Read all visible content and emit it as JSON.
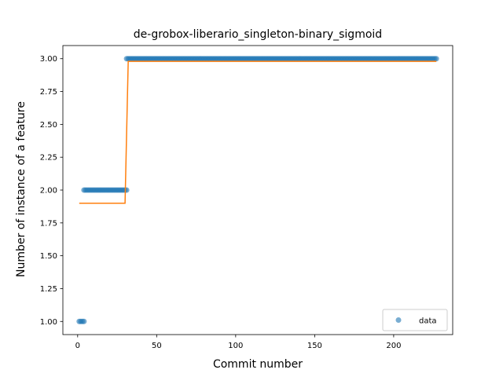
{
  "chart_data": {
    "type": "scatter",
    "title": "de-grobox-liberario_singleton-binary_sigmoid",
    "xlabel": "Commit number",
    "ylabel": "Number of instance of a feature",
    "xlim": [
      -9.35,
      237.35
    ],
    "ylim": [
      0.9,
      3.1
    ],
    "x_ticks": [
      0,
      50,
      100,
      150,
      200
    ],
    "y_ticks": [
      1.0,
      1.25,
      1.5,
      1.75,
      2.0,
      2.25,
      2.5,
      2.75,
      3.0
    ],
    "x_tick_labels": [
      "0",
      "50",
      "100",
      "150",
      "200"
    ],
    "y_tick_labels": [
      "1.00",
      "1.25",
      "1.50",
      "1.75",
      "2.00",
      "2.25",
      "2.50",
      "2.75",
      "3.00"
    ],
    "grid": false,
    "legend": {
      "placement": "lower-right",
      "entries": [
        "data"
      ]
    },
    "colors": {
      "data": "#1f77b4",
      "fit": "#ff7f0e"
    },
    "series": [
      {
        "name": "data",
        "kind": "scatter",
        "runs": [
          {
            "x_start": 1,
            "x_end": 4,
            "y": 1.0
          },
          {
            "x_start": 4,
            "x_end": 31,
            "y": 2.0
          },
          {
            "x_start": 31,
            "x_end": 227,
            "y": 3.0
          }
        ]
      },
      {
        "kind": "line",
        "x": [
          1,
          30,
          32,
          227
        ],
        "y": [
          1.9,
          1.9,
          2.98,
          2.98
        ]
      }
    ]
  }
}
